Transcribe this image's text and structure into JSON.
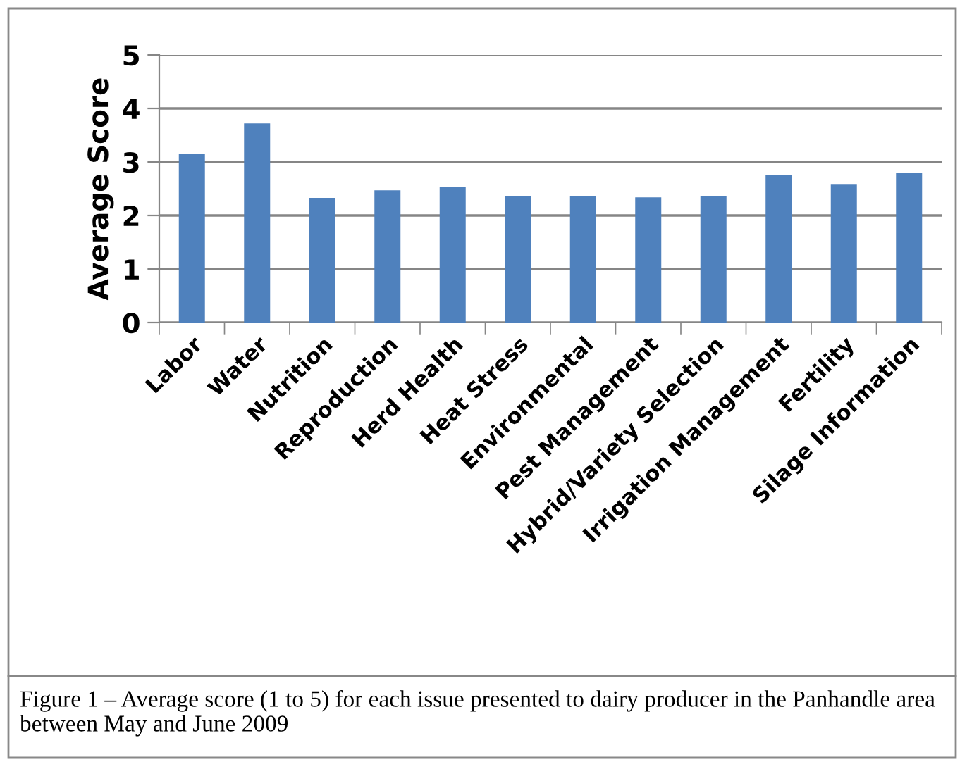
{
  "chart_data": {
    "type": "bar",
    "ylabel": "Average Score",
    "categories": [
      "Labor",
      "Water",
      "Nutrition",
      "Reproduction",
      "Herd Health",
      "Heat Stress",
      "Environmental",
      "Pest Management",
      "Hybrid/Variety Selection",
      "Irrigation Management",
      "Fertility",
      "Silage Information"
    ],
    "values": [
      3.15,
      3.72,
      2.33,
      2.47,
      2.53,
      2.36,
      2.37,
      2.34,
      2.36,
      2.75,
      2.59,
      2.79
    ],
    "color": "#4f81bd",
    "ylim": [
      0,
      5
    ],
    "yticks": [
      0,
      1,
      2,
      3,
      4,
      5
    ],
    "grid": "y",
    "annotations": [
      "Figure 1 – Average score (1 to 5) for each issue presented to dairy producer in the Panhandle area between May and June 2009"
    ]
  }
}
